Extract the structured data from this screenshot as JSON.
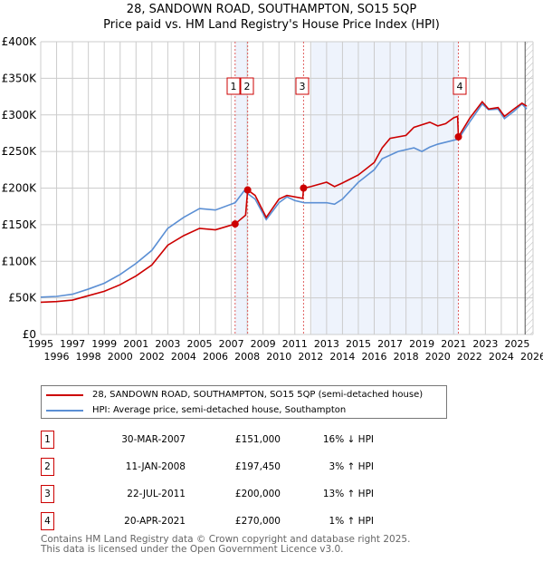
{
  "title_line1": "28, SANDOWN ROAD, SOUTHAMPTON, SO15 5QP",
  "title_line2": "Price paid vs. HM Land Registry's House Price Index (HPI)",
  "chart_data": {
    "type": "line",
    "title": "28, SANDOWN ROAD, SOUTHAMPTON, SO15 5QP — Price paid vs. HM Land Registry's House Price Index (HPI)",
    "xlim": [
      1995,
      2026
    ],
    "ylim": [
      0,
      400000
    ],
    "x_ticks": [
      "1995",
      "1996",
      "1997",
      "1998",
      "1999",
      "2000",
      "2001",
      "2002",
      "2003",
      "2004",
      "2005",
      "2006",
      "2007",
      "2008",
      "2009",
      "2010",
      "2011",
      "2012",
      "2013",
      "2014",
      "2015",
      "2016",
      "2017",
      "2018",
      "2019",
      "2020",
      "2021",
      "2022",
      "2023",
      "2024",
      "2025",
      "2026"
    ],
    "y_ticks": [
      {
        "v": 0,
        "l": "£0"
      },
      {
        "v": 50000,
        "l": "£50K"
      },
      {
        "v": 100000,
        "l": "£100K"
      },
      {
        "v": 150000,
        "l": "£150K"
      },
      {
        "v": 200000,
        "l": "£200K"
      },
      {
        "v": 250000,
        "l": "£250K"
      },
      {
        "v": 300000,
        "l": "£300K"
      },
      {
        "v": 350000,
        "l": "£350K"
      },
      {
        "v": 400000,
        "l": "£400K"
      }
    ],
    "grid": true,
    "colors": {
      "property": "#cc0000",
      "hpi": "#5b8fd4",
      "shade": "#eef3fc"
    },
    "series": [
      {
        "name": "28, SANDOWN ROAD, SOUTHAMPTON, SO15 5QP (semi-detached house)",
        "color": "#cc0000",
        "points": [
          [
            1995,
            44000
          ],
          [
            1996,
            45000
          ],
          [
            1997,
            47000
          ],
          [
            1998,
            53000
          ],
          [
            1999,
            59000
          ],
          [
            2000,
            68000
          ],
          [
            2001,
            80000
          ],
          [
            2002,
            95000
          ],
          [
            2003,
            122000
          ],
          [
            2004,
            135000
          ],
          [
            2005,
            145000
          ],
          [
            2006,
            143000
          ],
          [
            2007.24,
            151000
          ],
          [
            2007.9,
            163000
          ],
          [
            2008.03,
            197450
          ],
          [
            2008.5,
            190000
          ],
          [
            2009.2,
            160000
          ],
          [
            2010,
            185000
          ],
          [
            2010.5,
            190000
          ],
          [
            2011.5,
            186000
          ],
          [
            2011.55,
            200000
          ],
          [
            2012,
            202000
          ],
          [
            2013,
            208000
          ],
          [
            2013.5,
            202000
          ],
          [
            2014,
            207000
          ],
          [
            2015,
            218000
          ],
          [
            2016,
            235000
          ],
          [
            2016.5,
            255000
          ],
          [
            2017,
            268000
          ],
          [
            2018,
            272000
          ],
          [
            2018.5,
            283000
          ],
          [
            2019.5,
            290000
          ],
          [
            2020,
            285000
          ],
          [
            2020.5,
            288000
          ],
          [
            2021,
            296000
          ],
          [
            2021.25,
            298000
          ],
          [
            2021.3,
            270000
          ],
          [
            2022,
            295000
          ],
          [
            2022.8,
            318000
          ],
          [
            2023.2,
            308000
          ],
          [
            2023.8,
            310000
          ],
          [
            2024.2,
            298000
          ],
          [
            2024.8,
            308000
          ],
          [
            2025.3,
            316000
          ],
          [
            2025.6,
            312000
          ]
        ]
      },
      {
        "name": "HPI: Average price, semi-detached house, Southampton",
        "color": "#5b8fd4",
        "points": [
          [
            1995,
            51000
          ],
          [
            1996,
            52000
          ],
          [
            1997,
            55000
          ],
          [
            1998,
            62000
          ],
          [
            1999,
            70000
          ],
          [
            2000,
            82000
          ],
          [
            2001,
            97000
          ],
          [
            2002,
            115000
          ],
          [
            2003,
            145000
          ],
          [
            2004,
            160000
          ],
          [
            2005,
            172000
          ],
          [
            2006,
            170000
          ],
          [
            2007.24,
            180000
          ],
          [
            2007.8,
            196000
          ],
          [
            2008.5,
            185000
          ],
          [
            2009.2,
            157000
          ],
          [
            2010,
            180000
          ],
          [
            2010.5,
            188000
          ],
          [
            2011,
            183000
          ],
          [
            2011.6,
            180000
          ],
          [
            2012,
            180000
          ],
          [
            2013,
            180000
          ],
          [
            2013.5,
            178000
          ],
          [
            2014,
            185000
          ],
          [
            2015,
            208000
          ],
          [
            2016,
            225000
          ],
          [
            2016.5,
            240000
          ],
          [
            2017.5,
            250000
          ],
          [
            2018.5,
            255000
          ],
          [
            2019,
            250000
          ],
          [
            2019.5,
            256000
          ],
          [
            2020,
            260000
          ],
          [
            2021.3,
            267000
          ],
          [
            2022,
            290000
          ],
          [
            2022.8,
            315000
          ],
          [
            2023.2,
            307000
          ],
          [
            2023.8,
            308000
          ],
          [
            2024.2,
            295000
          ],
          [
            2024.8,
            305000
          ],
          [
            2025.3,
            315000
          ],
          [
            2025.6,
            308000
          ]
        ]
      }
    ],
    "sales": [
      {
        "label": "1",
        "x": 2007.24,
        "y": 151000
      },
      {
        "label": "2",
        "x": 2008.03,
        "y": 197450
      },
      {
        "label": "3",
        "x": 2011.55,
        "y": 200000
      },
      {
        "label": "4",
        "x": 2021.3,
        "y": 270000
      }
    ],
    "shaded_ranges": [
      [
        2007.24,
        2008.03
      ],
      [
        2012.05,
        2021.3
      ]
    ],
    "hatched_from": 2025.5
  },
  "legend": [
    {
      "label": "28, SANDOWN ROAD, SOUTHAMPTON, SO15 5QP (semi-detached house)",
      "color": "#cc0000"
    },
    {
      "label": "HPI: Average price, semi-detached house, Southampton",
      "color": "#5b8fd4"
    }
  ],
  "transactions": [
    {
      "num": "1",
      "date": "30-MAR-2007",
      "price": "£151,000",
      "hpi": "16% ↓ HPI"
    },
    {
      "num": "2",
      "date": "11-JAN-2008",
      "price": "£197,450",
      "hpi": "3% ↑ HPI"
    },
    {
      "num": "3",
      "date": "22-JUL-2011",
      "price": "£200,000",
      "hpi": "13% ↑ HPI"
    },
    {
      "num": "4",
      "date": "20-APR-2021",
      "price": "£270,000",
      "hpi": "1% ↑ HPI"
    }
  ],
  "footer_line1": "Contains HM Land Registry data © Crown copyright and database right 2025.",
  "footer_line2": "This data is licensed under the Open Government Licence v3.0."
}
